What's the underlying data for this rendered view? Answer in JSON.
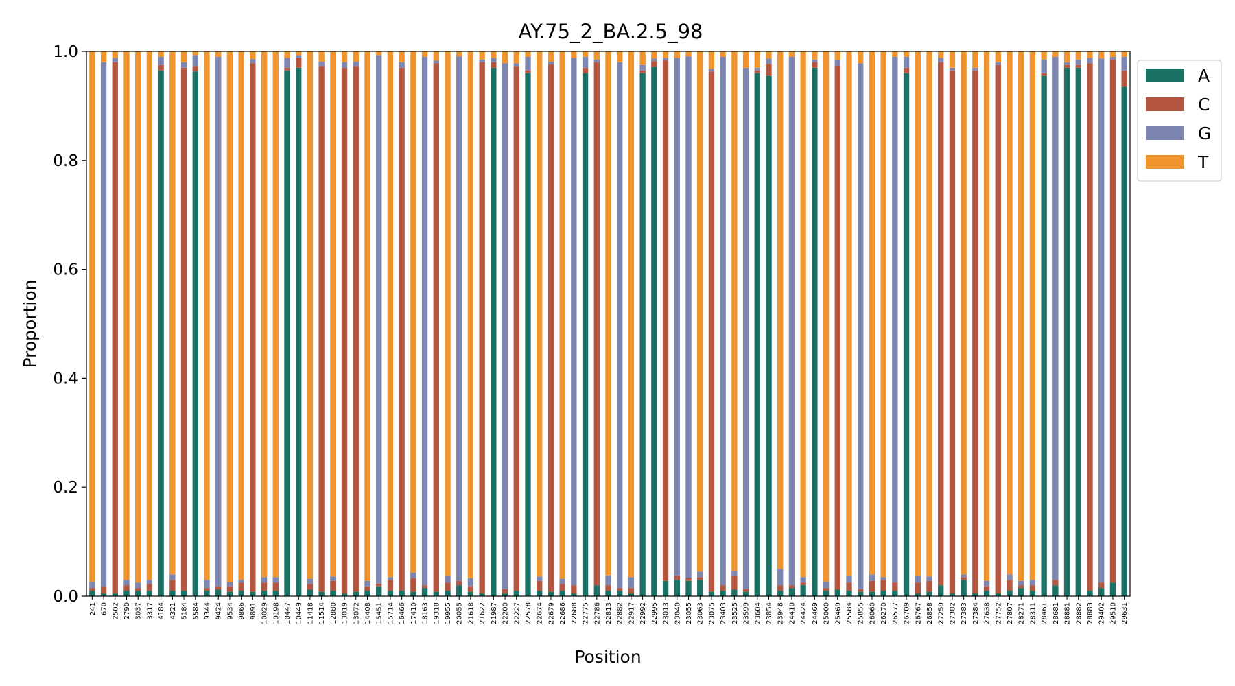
{
  "chart_data": {
    "type": "bar",
    "stacked": true,
    "title": "AY.75_2_BA.2.5_98",
    "xlabel": "Position",
    "ylabel": "Proportion",
    "ylim": [
      0,
      1
    ],
    "yticks": [
      "0.0",
      "0.2",
      "0.4",
      "0.6",
      "0.8",
      "1.0"
    ],
    "grid": false,
    "legend_position": "outside-top-right",
    "categories": [
      "241",
      "670",
      "2502",
      "2790",
      "3037",
      "3317",
      "4184",
      "4321",
      "5184",
      "5584",
      "9344",
      "9424",
      "9534",
      "9866",
      "9891",
      "10029",
      "10198",
      "10447",
      "10449",
      "11418",
      "11514",
      "12880",
      "13019",
      "13072",
      "14408",
      "15451",
      "15714",
      "16466",
      "17410",
      "18163",
      "19318",
      "19955",
      "20055",
      "21618",
      "21622",
      "21987",
      "22200",
      "22227",
      "22578",
      "22674",
      "22679",
      "22686",
      "22688",
      "22775",
      "22786",
      "22813",
      "22882",
      "22917",
      "22992",
      "22995",
      "23013",
      "23040",
      "23055",
      "23063",
      "23075",
      "23403",
      "23525",
      "23599",
      "23604",
      "23854",
      "23948",
      "24410",
      "24424",
      "24469",
      "25000",
      "25469",
      "25584",
      "25855",
      "26060",
      "26270",
      "26577",
      "26709",
      "26767",
      "26858",
      "27259",
      "27382",
      "27383",
      "27384",
      "27638",
      "27752",
      "27807",
      "28271",
      "28311",
      "28461",
      "28681",
      "28881",
      "28882",
      "28883",
      "29402",
      "29510",
      "29631"
    ],
    "series": [
      {
        "name": "A",
        "color": "#1b7264",
        "values": [
          0.01,
          0.005,
          0.005,
          0.01,
          0.01,
          0.01,
          0.965,
          0.01,
          0.01,
          0.963,
          0.01,
          0.012,
          0.008,
          0.01,
          0.008,
          0.01,
          0.01,
          0.965,
          0.97,
          0.012,
          0.008,
          0.01,
          0.005,
          0.008,
          0.01,
          0.018,
          0.01,
          0.01,
          0.008,
          0.015,
          0.008,
          0.01,
          0.02,
          0.008,
          0.005,
          0.97,
          0.005,
          0.01,
          0.96,
          0.01,
          0.008,
          0.01,
          0.005,
          0.96,
          0.02,
          0.01,
          0.01,
          0.005,
          0.96,
          0.972,
          0.028,
          0.03,
          0.028,
          0.03,
          0.008,
          0.01,
          0.012,
          0.008,
          0.96,
          0.955,
          0.01,
          0.015,
          0.02,
          0.97,
          0.01,
          0.012,
          0.01,
          0.008,
          0.008,
          0.01,
          0.01,
          0.96,
          0.005,
          0.008,
          0.02,
          0.005,
          0.03,
          0.005,
          0.01,
          0.005,
          0.01,
          0.015,
          0.01,
          0.955,
          0.02,
          0.97,
          0.97,
          0.01,
          0.015,
          0.025,
          0.935
        ]
      },
      {
        "name": "C",
        "color": "#b55640",
        "values": [
          0.005,
          0.012,
          0.975,
          0.01,
          0.005,
          0.012,
          0.01,
          0.02,
          0.96,
          0.01,
          0.005,
          0.005,
          0.01,
          0.015,
          0.97,
          0.015,
          0.015,
          0.005,
          0.018,
          0.01,
          0.965,
          0.018,
          0.965,
          0.965,
          0.008,
          0.005,
          0.02,
          0.96,
          0.025,
          0.005,
          0.97,
          0.015,
          0.008,
          0.01,
          0.975,
          0.01,
          0.008,
          0.963,
          0.005,
          0.018,
          0.968,
          0.012,
          0.015,
          0.01,
          0.96,
          0.01,
          0.005,
          0.01,
          0.005,
          0.01,
          0.955,
          0.008,
          0.005,
          0.005,
          0.955,
          0.01,
          0.025,
          0.005,
          0.005,
          0.022,
          0.01,
          0.005,
          0.005,
          0.01,
          0.005,
          0.962,
          0.015,
          0.005,
          0.02,
          0.02,
          0.015,
          0.01,
          0.02,
          0.02,
          0.96,
          0.96,
          0.005,
          0.96,
          0.008,
          0.97,
          0.02,
          0.005,
          0.01,
          0.005,
          0.01,
          0.005,
          0.005,
          0.968,
          0.01,
          0.96,
          0.03
        ]
      },
      {
        "name": "G",
        "color": "#7d85b1",
        "values": [
          0.012,
          0.963,
          0.008,
          0.01,
          0.01,
          0.008,
          0.015,
          0.01,
          0.01,
          0.02,
          0.015,
          0.973,
          0.008,
          0.005,
          0.008,
          0.01,
          0.01,
          0.018,
          0.005,
          0.01,
          0.008,
          0.008,
          0.01,
          0.008,
          0.01,
          0.97,
          0.005,
          0.01,
          0.01,
          0.97,
          0.005,
          0.012,
          0.963,
          0.015,
          0.005,
          0.008,
          0.965,
          0.005,
          0.025,
          0.008,
          0.005,
          0.01,
          0.968,
          0.02,
          0.005,
          0.018,
          0.965,
          0.02,
          0.01,
          0.005,
          0.005,
          0.95,
          0.958,
          0.01,
          0.005,
          0.97,
          0.01,
          0.957,
          0.005,
          0.01,
          0.03,
          0.97,
          0.01,
          0.005,
          0.012,
          0.01,
          0.012,
          0.965,
          0.012,
          0.005,
          0.965,
          0.02,
          0.012,
          0.008,
          0.008,
          0.005,
          0.005,
          0.005,
          0.01,
          0.005,
          0.01,
          0.008,
          0.01,
          0.025,
          0.96,
          0.005,
          0.01,
          0.01,
          0.962,
          0.005,
          0.025
        ]
      },
      {
        "name": "T",
        "color": "#f0952d",
        "values": [
          0.973,
          0.02,
          0.012,
          0.97,
          0.975,
          0.97,
          0.01,
          0.96,
          0.02,
          0.007,
          0.97,
          0.01,
          0.974,
          0.97,
          0.014,
          0.965,
          0.965,
          0.012,
          0.007,
          0.968,
          0.019,
          0.964,
          0.02,
          0.019,
          0.972,
          0.007,
          0.965,
          0.02,
          0.957,
          0.01,
          0.017,
          0.963,
          0.009,
          0.967,
          0.015,
          0.012,
          0.022,
          0.022,
          0.01,
          0.964,
          0.019,
          0.968,
          0.012,
          0.01,
          0.015,
          0.962,
          0.02,
          0.965,
          0.025,
          0.013,
          0.012,
          0.012,
          0.009,
          0.955,
          0.032,
          0.01,
          0.953,
          0.03,
          0.03,
          0.013,
          0.95,
          0.01,
          0.965,
          0.015,
          0.973,
          0.016,
          0.963,
          0.022,
          0.96,
          0.965,
          0.01,
          0.01,
          0.963,
          0.964,
          0.012,
          0.03,
          0.96,
          0.03,
          0.972,
          0.02,
          0.96,
          0.972,
          0.97,
          0.015,
          0.01,
          0.02,
          0.015,
          0.012,
          0.013,
          0.01,
          0.01
        ]
      }
    ]
  }
}
